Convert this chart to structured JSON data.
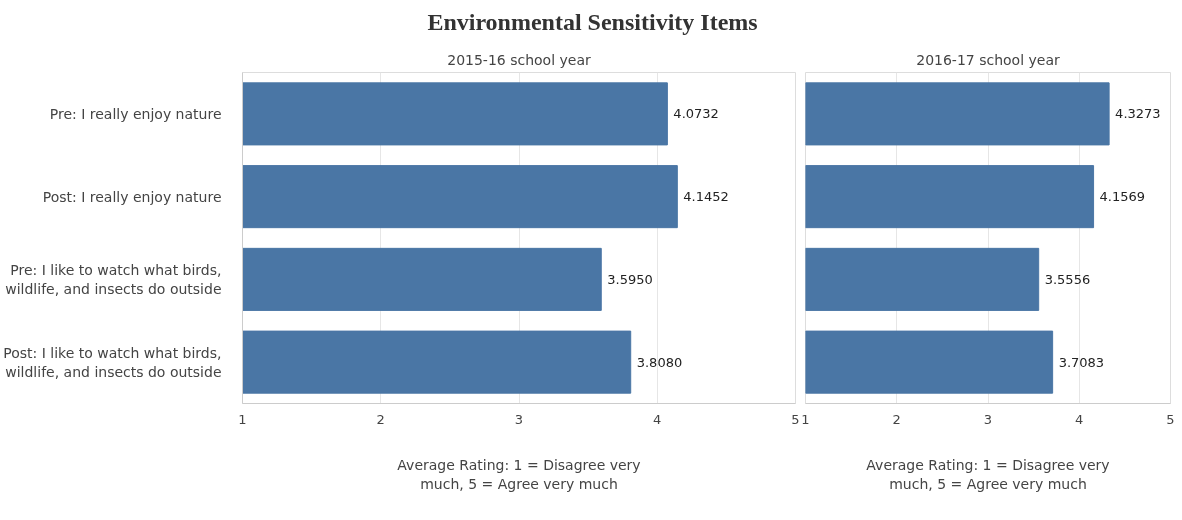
{
  "chart_data": [
    {
      "type": "bar",
      "orientation": "horizontal",
      "title": "Environmental Sensitivity Items",
      "subtitle": "2015-16 school year",
      "xlabel": "Average Rating: 1 = Disagree very much, 5 = Agree very much",
      "categories": [
        "Pre: I really enjoy nature",
        "Post: I really enjoy nature",
        "Pre: I like to watch what birds, wildlife, and insects do outside",
        "Post: I like to watch what birds, wildlife, and insects do outside"
      ],
      "values": [
        4.0732,
        4.1452,
        3.595,
        3.808
      ],
      "value_labels": [
        "4.0732",
        "4.1452",
        "3.5950",
        "3.8080"
      ],
      "color": "#4a76a5",
      "xlim": [
        1,
        5
      ],
      "xticks": [
        1,
        2,
        3,
        4,
        5
      ],
      "grid": "x"
    },
    {
      "type": "bar",
      "orientation": "horizontal",
      "subtitle": "2016-17 school year",
      "xlabel": "Average Rating: 1 = Disagree very much, 5 = Agree very much",
      "categories": [
        "Pre: I really enjoy nature",
        "Post: I really enjoy nature",
        "Pre: I like to watch what birds, wildlife, and insects do outside",
        "Post: I like to watch what birds, wildlife, and insects do outside"
      ],
      "values": [
        4.3273,
        4.1569,
        3.5556,
        3.7083
      ],
      "data_labels": true,
      "color": "#4a76a5",
      "xlim": [
        1,
        5
      ],
      "xticks": [
        1,
        2,
        3,
        4,
        5
      ],
      "grid": "x",
      "tick_labels": "x"
    }
  ]
}
